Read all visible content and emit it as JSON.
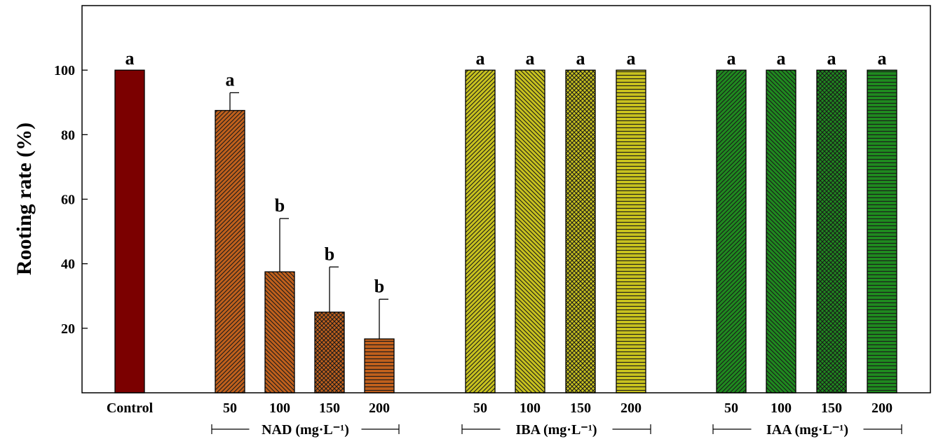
{
  "chart_data": {
    "type": "bar",
    "ylabel": "Rooting rate (%)",
    "xlabel": "",
    "ylim": [
      0,
      120
    ],
    "yticks": [
      20,
      40,
      60,
      80,
      100
    ],
    "grid": false,
    "colors": {
      "Control": "#7b0000",
      "NAD": "#c0601c",
      "IBA": "#c8c21e",
      "IAA": "#1f8a1f"
    },
    "groups": [
      {
        "name": "",
        "unit_label": "",
        "bars": [
          {
            "label": "Control",
            "value": 100,
            "error": 0,
            "letter": "a",
            "pattern": "solid"
          }
        ]
      },
      {
        "name": "NAD",
        "unit_label": "NAD (mg·L⁻¹)",
        "bars": [
          {
            "label": "50",
            "value": 87.5,
            "error": 5.5,
            "letter": "a",
            "pattern": "diag-right"
          },
          {
            "label": "100",
            "value": 37.5,
            "error": 16.5,
            "letter": "b",
            "pattern": "diag-left"
          },
          {
            "label": "150",
            "value": 25,
            "error": 14,
            "letter": "b",
            "pattern": "crosshatch"
          },
          {
            "label": "200",
            "value": 16.7,
            "error": 12.3,
            "letter": "b",
            "pattern": "horizontal"
          }
        ]
      },
      {
        "name": "IBA",
        "unit_label": "IBA (mg·L⁻¹)",
        "bars": [
          {
            "label": "50",
            "value": 100,
            "error": 0,
            "letter": "a",
            "pattern": "diag-right"
          },
          {
            "label": "100",
            "value": 100,
            "error": 0,
            "letter": "a",
            "pattern": "diag-left"
          },
          {
            "label": "150",
            "value": 100,
            "error": 0,
            "letter": "a",
            "pattern": "crosshatch"
          },
          {
            "label": "200",
            "value": 100,
            "error": 0,
            "letter": "a",
            "pattern": "horizontal"
          }
        ]
      },
      {
        "name": "IAA",
        "unit_label": "IAA (mg·L⁻¹)",
        "bars": [
          {
            "label": "50",
            "value": 100,
            "error": 0,
            "letter": "a",
            "pattern": "diag-right"
          },
          {
            "label": "100",
            "value": 100,
            "error": 0,
            "letter": "a",
            "pattern": "diag-left"
          },
          {
            "label": "150",
            "value": 100,
            "error": 0,
            "letter": "a",
            "pattern": "crosshatch"
          },
          {
            "label": "200",
            "value": 100,
            "error": 0,
            "letter": "a",
            "pattern": "horizontal"
          }
        ]
      }
    ]
  }
}
